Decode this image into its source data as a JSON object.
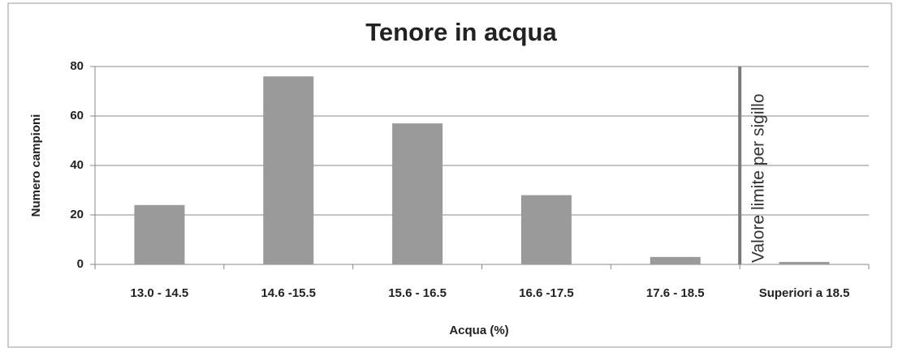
{
  "chart_data": {
    "type": "bar",
    "title": "Tenore in acqua",
    "categories": [
      "13.0 - 14.5",
      "14.6 -15.5",
      "15.6 - 16.5",
      "16.6 -17.5",
      "17.6 - 18.5",
      "Superiori a 18.5"
    ],
    "values": [
      24,
      76,
      57,
      28,
      3,
      1
    ],
    "color": "#9a9a9a",
    "ylim": [
      0,
      80
    ],
    "yticks": [
      0,
      20,
      40,
      60,
      80
    ],
    "grid": true,
    "x_label": "Acqua (%)",
    "y_label": "Numero campioni",
    "annotation": "Valore limite per sigillo"
  }
}
